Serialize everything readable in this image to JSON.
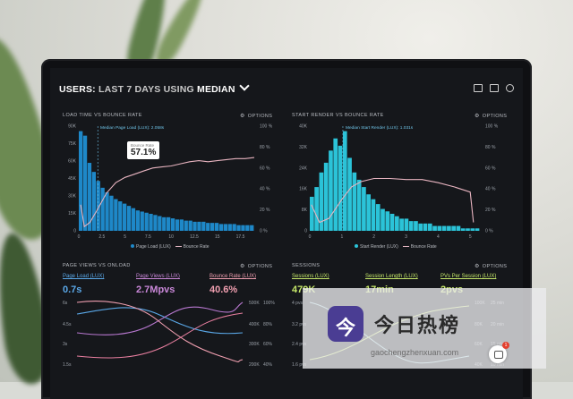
{
  "header": {
    "title_prefix": "USERS: ",
    "title_mid": "LAST 7 DAYS",
    "title_using": " USING ",
    "title_end": "MEDIAN"
  },
  "panel_load": {
    "title": "LOAD TIME VS BOUNCE RATE",
    "options": "OPTIONS",
    "median_label": "Median Page Load (LUX): 2.058s",
    "tooltip_label": "Bounce Rate",
    "tooltip_value": "57.1%",
    "legend_a": "Page Load (LUX)",
    "legend_b": "Bounce Rate",
    "colors": {
      "bar": "#1e88c8",
      "line": "#e8b4c0"
    }
  },
  "panel_render": {
    "title": "START RENDER VS BOUNCE RATE",
    "options": "OPTIONS",
    "median_label": "Median Start Render (LUX): 1.031s",
    "legend_a": "Start Render (LUX)",
    "legend_b": "Bounce Rate",
    "colors": {
      "bar": "#2bc3d8",
      "line": "#e8b4c0"
    }
  },
  "panel_views": {
    "title": "PAGE VIEWS VS ONLOAD",
    "options": "OPTIONS",
    "kpis": [
      {
        "label": "Page Load (LUX)",
        "value": "0.7s",
        "color": "#5aa8e8"
      },
      {
        "label": "Page Views (LUX)",
        "value": "2.7Mpvs",
        "color": "#c987d8"
      },
      {
        "label": "Bounce Rate (LUX)",
        "value": "40.6%",
        "color": "#f09fb0"
      }
    ]
  },
  "panel_sessions": {
    "title": "SESSIONS",
    "options": "OPTIONS",
    "kpis": [
      {
        "label": "Sessions (LUX)",
        "value": "479K",
        "color": "#c6e86a"
      },
      {
        "label": "Session Length (LUX)",
        "value": "17min",
        "color": "#c6e86a"
      },
      {
        "label": "PVs Per Session (LUX)",
        "value": "2pvs",
        "color": "#c6e86a"
      }
    ]
  },
  "overlay": {
    "name": "今日热榜",
    "logo_glyph": "今",
    "url": "gaochengzhenxuan.com",
    "badge": "1"
  },
  "chart_data": [
    {
      "type": "bar",
      "title": "LOAD TIME VS BOUNCE RATE",
      "x_ticks": [
        "0",
        "2.5",
        "5",
        "7.5",
        "10",
        "12.5",
        "15",
        "17.5"
      ],
      "y_left_ticks": [
        "90K",
        "75K",
        "60K",
        "45K",
        "30K",
        "15K",
        "0"
      ],
      "y_right_ticks": [
        "100 %",
        "80 %",
        "60 %",
        "40 %",
        "20 %",
        "0 %"
      ],
      "series": [
        {
          "name": "Page Load (LUX)",
          "type": "bar",
          "values": [
            88,
            84,
            60,
            52,
            44,
            38,
            34,
            31,
            28,
            26,
            24,
            22,
            20,
            18,
            17,
            16,
            15,
            14,
            13,
            12,
            12,
            11,
            10,
            10,
            9,
            9,
            8,
            8,
            8,
            7,
            7,
            7,
            6,
            6,
            6,
            6,
            5,
            5,
            5,
            5
          ]
        },
        {
          "name": "Bounce Rate",
          "type": "line",
          "points": [
            [
              0.2,
              25
            ],
            [
              0.6,
              4
            ],
            [
              1.2,
              8
            ],
            [
              2,
              20
            ],
            [
              3,
              36
            ],
            [
              4,
              46
            ],
            [
              5,
              51
            ],
            [
              6,
              54
            ],
            [
              7,
              57.1
            ],
            [
              8,
              60
            ],
            [
              9,
              61
            ],
            [
              10,
              62
            ],
            [
              11,
              64
            ],
            [
              12,
              66
            ],
            [
              13,
              67
            ],
            [
              14,
              66
            ],
            [
              15,
              67
            ],
            [
              16,
              68
            ],
            [
              17,
              69
            ],
            [
              18,
              69
            ],
            [
              19,
              70
            ]
          ]
        }
      ]
    },
    {
      "type": "bar",
      "title": "START RENDER VS BOUNCE RATE",
      "x_ticks": [
        "0",
        "1",
        "2",
        "3",
        "4",
        "5"
      ],
      "y_left_ticks": [
        "40K",
        "32K",
        "24K",
        "16K",
        "8K",
        "0"
      ],
      "y_right_ticks": [
        "100 %",
        "80 %",
        "60 %",
        "40 %",
        "20 %",
        "0 %"
      ],
      "series": [
        {
          "name": "Start Render (LUX)",
          "type": "bar",
          "values": [
            14,
            18,
            24,
            28,
            33,
            38,
            35,
            41,
            30,
            24,
            21,
            18,
            15,
            13,
            11,
            9,
            8,
            7,
            6,
            5,
            5,
            4,
            4,
            3,
            3,
            3,
            2,
            2,
            2,
            2,
            2,
            2,
            1,
            1,
            1,
            1
          ]
        },
        {
          "name": "Bounce Rate",
          "type": "line",
          "points": [
            [
              0.05,
              25
            ],
            [
              0.3,
              8
            ],
            [
              0.6,
              12
            ],
            [
              1,
              30
            ],
            [
              1.3,
              42
            ],
            [
              1.6,
              47
            ],
            [
              2,
              50
            ],
            [
              2.5,
              50
            ],
            [
              3,
              49
            ],
            [
              3.5,
              49
            ],
            [
              4,
              46
            ],
            [
              4.5,
              42
            ],
            [
              5,
              37
            ],
            [
              5.1,
              8
            ]
          ]
        }
      ]
    }
  ]
}
